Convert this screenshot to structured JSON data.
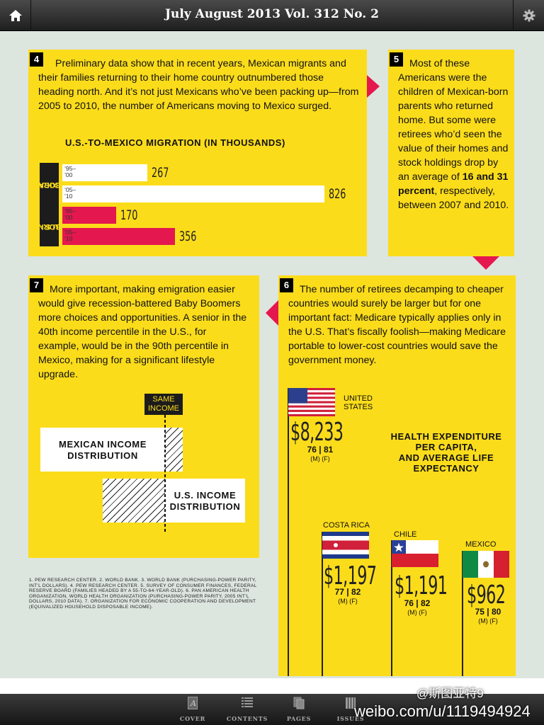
{
  "header": {
    "title": "July August 2013  Vol. 312 No. 2",
    "home_icon": "home-icon",
    "settings_icon": "gear-icon"
  },
  "colors": {
    "yellow": "#fbdc1b",
    "crimson": "#e4174f",
    "dark": "#1c1c1c"
  },
  "section4": {
    "number": "4",
    "text": "Preliminary data show that in recent years, Mexican migrants and their families returning to their home country outnumbered those heading north. And it’s not just Mexicans who’ve been packing up—from 2005 to 2010, the number of Americans moving to Mexico surged.",
    "chart_title": "U.S.-TO-MEXICO MIGRATION (IN THOUSANDS)"
  },
  "chart_data": {
    "type": "bar",
    "title": "U.S.-TO-MEXICO MIGRATION (IN THOUSANDS)",
    "groups": [
      "MEXICAN-BORN",
      "U.S.-BORN"
    ],
    "categories": [
      "’95–’00",
      "’05–’10"
    ],
    "series": [
      {
        "name": "MEXICAN-BORN",
        "values": [
          267,
          826
        ]
      },
      {
        "name": "U.S.-BORN",
        "values": [
          170,
          356
        ]
      }
    ],
    "bars": [
      {
        "group": "MEXICAN-BORN",
        "period1": "’95–",
        "period2": "’00",
        "value": 267,
        "color": "#ffffff"
      },
      {
        "group": "MEXICAN-BORN",
        "period1": "’05–",
        "period2": "’10",
        "value": 826,
        "color": "#ffffff"
      },
      {
        "group": "U.S.-BORN",
        "period1": "’95–",
        "period2": "’00",
        "value": 170,
        "color": "#e4174f"
      },
      {
        "group": "U.S.-BORN",
        "period1": "’05–",
        "period2": "’10",
        "value": 356,
        "color": "#e4174f"
      }
    ],
    "group_labels": {
      "mexican_line1": "MEXICAN-",
      "mexican_line2": "BORN",
      "us_line1": "U.S.-",
      "us_line2": "BORN"
    }
  },
  "section5": {
    "number": "5",
    "text_before": "Most of these Americans were the children of Mexican-born parents who returned home. But some were retirees who’d seen the value of their homes and stock holdings drop by an average of ",
    "text_bold": "16 and 31 percent",
    "text_after": ", respectively, between 2007 and 2010."
  },
  "section7": {
    "number": "7",
    "text": "More important, making emigration easier would give recession-battered Baby Boomers more choices and opportunities. A senior in the 40th income percentile in the U.S., for example, would be in the 90th percentile in Mexico, making for a significant lifestyle upgrade.",
    "same_income_1": "SAME",
    "same_income_2": "INCOME",
    "mexican_dist_1": "MEXICAN INCOME",
    "mexican_dist_2": "DISTRIBUTION",
    "us_dist_1": "U.S. INCOME",
    "us_dist_2": "DISTRIBUTION"
  },
  "footnotes": "1. PEW RESEARCH CENTER. 2. WORLD BANK. 3. WORLD BANK (PURCHASING-POWER PARITY, INT’L DOLLARS). 4. PEW RESEARCH CENTER. 5. SURVEY OF CONSUMER FINANCES, FEDERAL RESERVE BOARD (FAMILIES HEADED BY A 55-TO-64-YEAR-OLD). 6. PAN AMERICAN HEALTH ORGANIZATION, WORLD HEALTH ORGANIZATION (PURCHASING-POWER PARITY, 2005 INT’L DOLLARS, 2010 DATA). 7. ORGANIZATION FOR ECONOMIC COOPERATION AND DEVELOPMENT (EQUIVALIZED HOUSEHOLD DISPOSABLE INCOME).",
  "section6": {
    "number": "6",
    "text": "The number of retirees decamping to cheaper countries would surely be larger but for one important fact: Medicare typically applies only in the U.S. That’s fiscally foolish—making Medicare portable to lower-cost countries would save the government money.",
    "title_1": "HEALTH EXPENDITURE",
    "title_2": "PER CAPITA,",
    "title_3": "AND AVERAGE LIFE",
    "title_4": "EXPECTANCY",
    "countries": [
      {
        "name1": "UNITED",
        "name2": "STATES",
        "spend": "$8,233",
        "life": "76 | 81",
        "mf": "(M)   (F)",
        "flag": "us-flag-icon"
      },
      {
        "name1": "COSTA RICA",
        "name2": "",
        "spend": "$1,197",
        "life": "77 | 82",
        "mf": "(M)   (F)",
        "flag": "costa-rica-flag-icon"
      },
      {
        "name1": "CHILE",
        "name2": "",
        "spend": "$1,191",
        "life": "76 | 82",
        "mf": "(M)   (F)",
        "flag": "chile-flag-icon"
      },
      {
        "name1": "MEXICO",
        "name2": "",
        "spend": "$962",
        "life": "75 | 80",
        "mf": "(M)   (F)",
        "flag": "mexico-flag-icon"
      }
    ]
  },
  "bottom_nav": [
    {
      "label": "COVER",
      "icon": "cover-icon"
    },
    {
      "label": "CONTENTS",
      "icon": "contents-icon"
    },
    {
      "label": "PAGES",
      "icon": "pages-icon"
    },
    {
      "label": "ISSUES",
      "icon": "issues-icon"
    }
  ],
  "watermark": {
    "handle": "@斯图亚特9",
    "url": "weibo.com/u/1119494924"
  }
}
